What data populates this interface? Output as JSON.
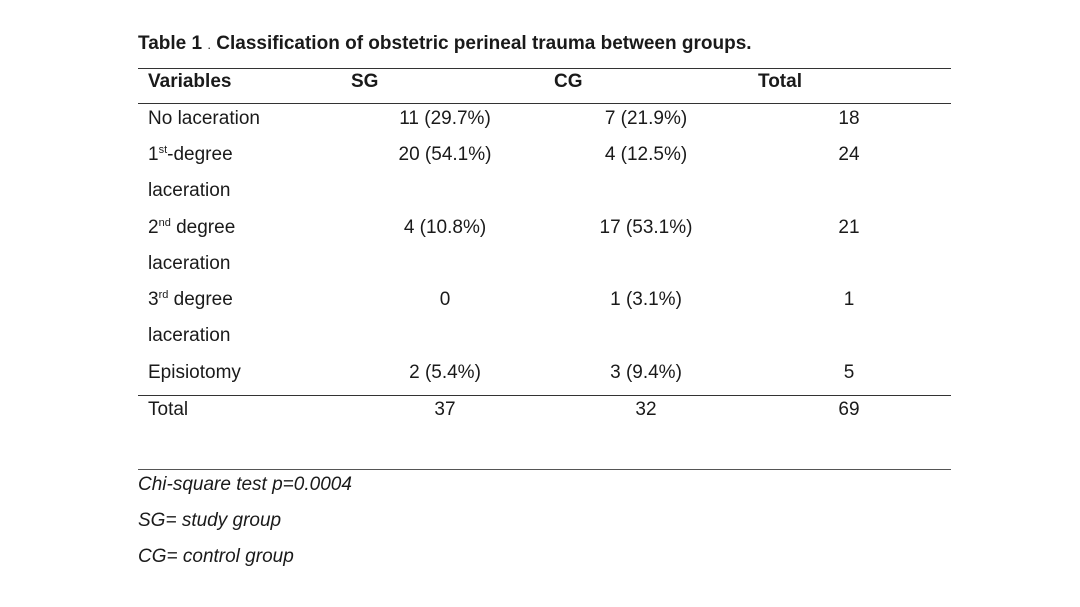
{
  "title": {
    "prefix": "Table",
    "number": "1",
    "separator": ".",
    "text": "Classification of obstetric perineal trauma between groups."
  },
  "header": {
    "variables": "Variables",
    "sg": "SG",
    "cg": "CG",
    "total": "Total"
  },
  "rows": [
    {
      "label": "No laceration",
      "sg": "11 (29.7%)",
      "cg": "7 (21.9%)",
      "total": "18"
    },
    {
      "label_num": "1",
      "label_sup": "st",
      "label_rest": "-degree",
      "label_line2": "laceration",
      "sg": "20 (54.1%)",
      "cg": "4 (12.5%)",
      "total": "24"
    },
    {
      "label_num": "2",
      "label_sup": "nd",
      "label_rest": " degree",
      "label_line2": "laceration",
      "sg": "4 (10.8%)",
      "cg": "17 (53.1%)",
      "total": "21"
    },
    {
      "label_num": "3",
      "label_sup": "rd",
      "label_rest": " degree",
      "label_line2": "laceration",
      "sg": "0",
      "cg": "1 (3.1%)",
      "total": "1"
    },
    {
      "label": "Episiotomy",
      "sg": "2 (5.4%)",
      "cg": "3 (9.4%)",
      "total": "5"
    }
  ],
  "total_row": {
    "label": "Total",
    "sg": "37",
    "cg": "32",
    "total": "69"
  },
  "notes": [
    "Chi-square test p=0.0004",
    "SG= study group",
    "CG= control group"
  ]
}
